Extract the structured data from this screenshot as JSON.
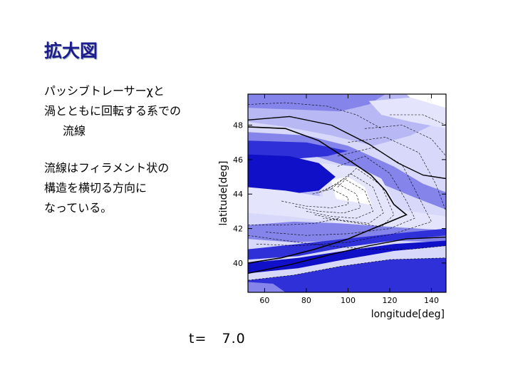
{
  "slide": {
    "title": "拡大図",
    "paragraph1": [
      "パッシブトレーサーχと",
      "渦とともに回転する系での",
      "流線"
    ],
    "paragraph2": [
      "流線はフィラメント状の",
      "構造を横切る方向に",
      "なっている。"
    ]
  },
  "chart_data": {
    "type": "contour",
    "xlabel": "longitude[deg]",
    "ylabel": "latitude[deg]",
    "xlim": [
      52,
      147
    ],
    "ylim": [
      38.3,
      49.8
    ],
    "xticks": [
      60,
      80,
      100,
      120,
      140
    ],
    "yticks": [
      40,
      42,
      44,
      46,
      48
    ],
    "grid": false,
    "time_label": "t=",
    "time_value": "7.0",
    "fill_colors": [
      "#ffffff",
      "#e4e4fc",
      "#b8b8f4",
      "#8484ea",
      "#3030d8",
      "#1010c8"
    ],
    "line_color": "#000000",
    "streamline": {
      "points": [
        [
          52,
          47.9
        ],
        [
          70,
          47.8
        ],
        [
          86,
          47.1
        ],
        [
          100,
          46.0
        ],
        [
          111,
          45.1
        ],
        [
          118,
          44.2
        ],
        [
          122,
          43.4
        ],
        [
          125,
          43.1
        ],
        [
          128,
          42.8
        ],
        [
          124,
          42.6
        ],
        [
          116,
          42.2
        ],
        [
          100,
          41.4
        ],
        [
          84,
          40.8
        ],
        [
          68,
          40.3
        ],
        [
          52,
          40.0
        ]
      ]
    },
    "solid_contours": [
      {
        "points": [
          [
            52,
            48.3
          ],
          [
            72,
            48.5
          ],
          [
            92,
            48.0
          ],
          [
            110,
            46.9
          ],
          [
            124,
            45.8
          ],
          [
            136,
            45.1
          ],
          [
            147,
            44.9
          ]
        ]
      },
      {
        "points": [
          [
            52,
            39.4
          ],
          [
            72,
            39.9
          ],
          [
            92,
            40.5
          ],
          [
            110,
            41.0
          ],
          [
            128,
            41.4
          ],
          [
            147,
            41.5
          ]
        ]
      }
    ],
    "dashed_contours": [
      {
        "points": [
          [
            95,
            44.4
          ],
          [
            104,
            45.5
          ],
          [
            116,
            44.5
          ],
          [
            122,
            42.8
          ],
          [
            116,
            42.1
          ],
          [
            100,
            42.4
          ],
          [
            88,
            42.6
          ]
        ]
      },
      {
        "points": [
          [
            92,
            44.3
          ],
          [
            101,
            45.2
          ],
          [
            112,
            44.4
          ],
          [
            117,
            42.9
          ],
          [
            110,
            42.3
          ],
          [
            96,
            42.5
          ],
          [
            84,
            42.8
          ]
        ]
      },
      {
        "points": [
          [
            89,
            44.2
          ],
          [
            98,
            44.9
          ],
          [
            108,
            44.2
          ],
          [
            112,
            43.0
          ],
          [
            104,
            42.6
          ],
          [
            92,
            42.7
          ],
          [
            80,
            43.0
          ]
        ]
      },
      {
        "points": [
          [
            86,
            44.1
          ],
          [
            95,
            44.6
          ],
          [
            104,
            44.0
          ],
          [
            106,
            43.2
          ],
          [
            98,
            42.9
          ],
          [
            86,
            43.0
          ],
          [
            74,
            43.3
          ]
        ]
      },
      {
        "points": [
          [
            83,
            44.0
          ],
          [
            92,
            44.3
          ],
          [
            100,
            43.8
          ],
          [
            100,
            43.4
          ],
          [
            92,
            43.2
          ],
          [
            80,
            43.3
          ],
          [
            68,
            43.6
          ]
        ]
      },
      {
        "points": [
          [
            95,
            45.6
          ],
          [
            108,
            46.2
          ],
          [
            120,
            45.2
          ],
          [
            128,
            43.6
          ],
          [
            132,
            42.6
          ],
          [
            120,
            42.0
          ],
          [
            100,
            41.7
          ],
          [
            80,
            41.6
          ],
          [
            60,
            41.8
          ]
        ]
      },
      {
        "points": [
          [
            95,
            46.2
          ],
          [
            112,
            46.7
          ],
          [
            126,
            45.7
          ],
          [
            134,
            43.8
          ],
          [
            140,
            42.4
          ],
          [
            122,
            41.7
          ],
          [
            100,
            41.2
          ],
          [
            76,
            41.0
          ],
          [
            56,
            41.1
          ]
        ]
      },
      {
        "points": [
          [
            100,
            47.0
          ],
          [
            118,
            47.3
          ],
          [
            134,
            46.4
          ],
          [
            142,
            44.6
          ],
          [
            147,
            43.0
          ]
        ]
      },
      {
        "points": [
          [
            108,
            47.8
          ],
          [
            126,
            48.0
          ],
          [
            140,
            47.2
          ],
          [
            147,
            46.2
          ]
        ]
      },
      {
        "points": [
          [
            120,
            48.6
          ],
          [
            136,
            48.6
          ],
          [
            147,
            48.0
          ]
        ]
      },
      {
        "points": [
          [
            52,
            41.6
          ],
          [
            70,
            41.3
          ],
          [
            90,
            41.0
          ],
          [
            110,
            40.8
          ],
          [
            130,
            40.8
          ],
          [
            147,
            41.0
          ]
        ]
      },
      {
        "points": [
          [
            52,
            42.2
          ],
          [
            68,
            42.2
          ],
          [
            84,
            42.3
          ],
          [
            96,
            42.6
          ]
        ]
      },
      {
        "points": [
          [
            52,
            49.2
          ],
          [
            70,
            49.3
          ],
          [
            90,
            49.1
          ],
          [
            104,
            48.6
          ],
          [
            116,
            47.8
          ]
        ]
      },
      {
        "points": [
          [
            52,
            39.0
          ],
          [
            74,
            39.3
          ],
          [
            96,
            39.8
          ],
          [
            120,
            40.2
          ],
          [
            147,
            40.3
          ]
        ]
      }
    ]
  }
}
